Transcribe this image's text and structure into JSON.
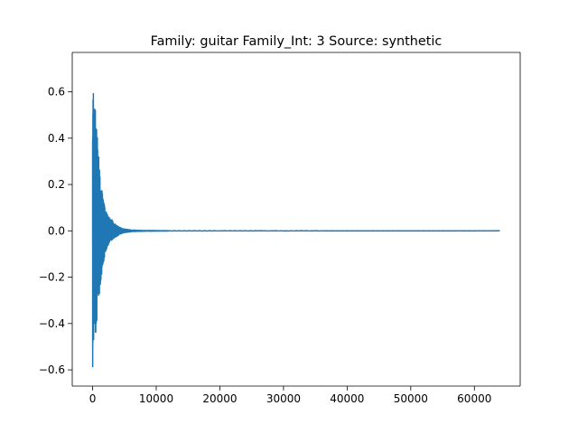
{
  "chart_data": {
    "type": "line",
    "title": "Family: guitar Family_Int: 3 Source: synthetic",
    "xlabel": "",
    "ylabel": "",
    "xlim": [
      -3200,
      67200
    ],
    "ylim": [
      -0.67,
      0.77
    ],
    "xticks": [
      0,
      10000,
      20000,
      30000,
      40000,
      50000,
      60000
    ],
    "xtick_labels": [
      "0",
      "10000",
      "20000",
      "30000",
      "40000",
      "50000",
      "60000"
    ],
    "yticks": [
      -0.6,
      -0.4,
      -0.2,
      0.0,
      0.2,
      0.4,
      0.6
    ],
    "ytick_labels": [
      "−0.6",
      "−0.4",
      "−0.2",
      "0.0",
      "0.2",
      "0.4",
      "0.6"
    ],
    "grid": false,
    "legend": "none",
    "series": [
      {
        "color": "#1f77b4",
        "description": "decaying oscillation: sample index vs amplitude",
        "x_range": [
          0,
          64000
        ],
        "envelope": {
          "x": [
            0,
            60,
            150,
            300,
            500,
            700,
            900,
            1200,
            1500,
            2000,
            2500,
            3000,
            3500,
            4000,
            4500,
            5000,
            6000,
            8000,
            12000,
            64000
          ],
          "upper": [
            0.71,
            0.7,
            0.55,
            0.53,
            0.52,
            0.45,
            0.4,
            0.21,
            0.17,
            0.09,
            0.06,
            0.05,
            0.03,
            0.02,
            0.012,
            0.008,
            0.004,
            0.002,
            0.001,
            0.0
          ],
          "lower": [
            -0.61,
            -0.6,
            -0.47,
            -0.46,
            -0.45,
            -0.4,
            -0.33,
            -0.24,
            -0.17,
            -0.1,
            -0.06,
            -0.04,
            -0.03,
            -0.02,
            -0.012,
            -0.008,
            -0.004,
            -0.002,
            -0.001,
            0.0
          ]
        }
      }
    ]
  }
}
